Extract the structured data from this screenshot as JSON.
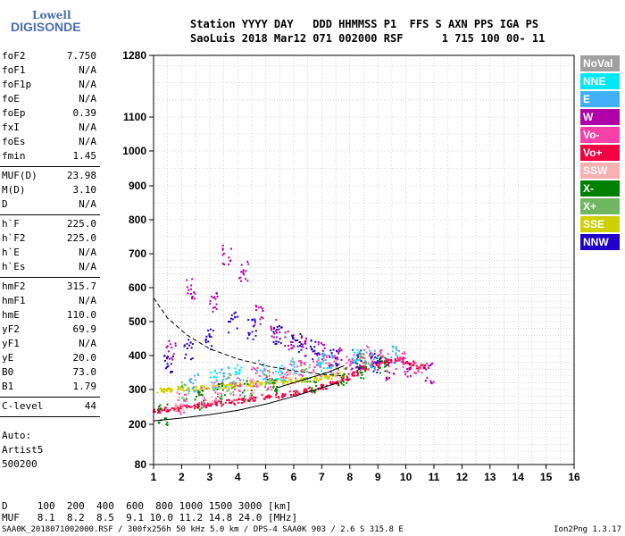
{
  "logo": {
    "brand": "Lowell",
    "name": "DIGISONDE"
  },
  "header": {
    "line1": "Station YYYY DAY   DDD HHMMSS P1  FFS S AXN PPS IGA PS",
    "line2": "SaoLuis 2018 Mar12 071 002000 RSF      1 715 100 00- 11"
  },
  "params": {
    "group1": [
      {
        "label": "foF2",
        "value": "7.750"
      },
      {
        "label": "foF1",
        "value": "N/A"
      },
      {
        "label": "foF1p",
        "value": "N/A"
      },
      {
        "label": "foE",
        "value": "N/A"
      },
      {
        "label": "foEp",
        "value": "0.39"
      },
      {
        "label": "fxI",
        "value": "N/A"
      },
      {
        "label": "foEs",
        "value": "N/A"
      },
      {
        "label": "fmin",
        "value": "1.45"
      }
    ],
    "group2": [
      {
        "label": "MUF(D)",
        "value": "23.98"
      },
      {
        "label": "M(D)",
        "value": "3.10"
      },
      {
        "label": "D",
        "value": "N/A"
      }
    ],
    "group3": [
      {
        "label": "h`F",
        "value": "225.0"
      },
      {
        "label": "h`F2",
        "value": "225.0"
      },
      {
        "label": "h`E",
        "value": "N/A"
      },
      {
        "label": "h`Es",
        "value": "N/A"
      }
    ],
    "group4": [
      {
        "label": "hmF2",
        "value": "315.7"
      },
      {
        "label": "hmF1",
        "value": "N/A"
      },
      {
        "label": "hmE",
        "value": "110.0"
      },
      {
        "label": "yF2",
        "value": "69.9"
      },
      {
        "label": "yF1",
        "value": "N/A"
      },
      {
        "label": "yE",
        "value": "20.0"
      },
      {
        "label": "B0",
        "value": "73.0"
      },
      {
        "label": "B1",
        "value": "1.79"
      }
    ],
    "group5": [
      {
        "label": "C-level",
        "value": "44"
      }
    ]
  },
  "auto": [
    "Auto:",
    "Artist5",
    "500200"
  ],
  "legend": [
    {
      "label": "NoVal",
      "color": "#a0a0a0"
    },
    {
      "label": "NNE",
      "color": "#00e8f8"
    },
    {
      "label": "E",
      "color": "#40b0f8"
    },
    {
      "label": "W",
      "color": "#b000a8"
    },
    {
      "label": "Vo-",
      "color": "#f840a8"
    },
    {
      "label": "Vo+",
      "color": "#f00040"
    },
    {
      "label": "SSW",
      "color": "#f8b0b0"
    },
    {
      "label": "X-",
      "color": "#008000"
    },
    {
      "label": "X+",
      "color": "#70b860"
    },
    {
      "label": "SSE",
      "color": "#d0d000"
    },
    {
      "label": "NNW",
      "color": "#2000c8"
    }
  ],
  "footer": {
    "d_line": "D     100  200  400  600  800 1000 1500 3000 [km]",
    "muf_line": "MUF   8.1  8.2  8.5  9.1 10.0 11.2 14.8 24.0 [MHz]",
    "file_info": "SAA0K_2018071002000.RSF / 300fx256h 50 kHz 5.0 km / DPS-4 SAA0K 903 / 2.6 S 315.8 E",
    "version": "Ion2Png 1.3.17"
  },
  "chart_data": {
    "type": "scatter",
    "title": "",
    "xlabel": "",
    "ylabel": "",
    "xlim": [
      1,
      16
    ],
    "ylim": [
      80,
      1280
    ],
    "y_scale": "log-like (virtual height)",
    "x_ticks": [
      1,
      2,
      3,
      4,
      5,
      6,
      7,
      8,
      9,
      10,
      11,
      12,
      13,
      14,
      15,
      16
    ],
    "y_ticks": [
      80,
      200,
      300,
      400,
      500,
      600,
      700,
      800,
      900,
      1000,
      1100,
      1280
    ],
    "grid": true,
    "series": [
      {
        "color": "#f00040",
        "x": [
          1.1,
          1.4,
          1.8,
          2.1,
          2.5,
          2.9,
          3.3,
          3.7,
          4.1,
          4.5,
          5.0,
          5.5,
          6.0,
          6.5,
          7.0,
          7.4,
          7.8,
          8.1,
          8.5,
          8.9,
          9.3,
          9.7,
          10.1,
          10.5
        ],
        "y": [
          240,
          245,
          248,
          252,
          255,
          258,
          262,
          266,
          270,
          275,
          280,
          285,
          292,
          300,
          310,
          320,
          335,
          350,
          365,
          375,
          385,
          390,
          380,
          370
        ]
      },
      {
        "color": "#d0d000",
        "x": [
          1.2,
          1.6,
          2.0,
          2.4,
          2.8,
          3.2,
          3.6,
          4.0,
          4.4,
          4.8,
          5.2,
          5.6,
          6.0,
          6.4,
          6.8,
          7.2,
          7.6
        ],
        "y": [
          300,
          302,
          305,
          306,
          308,
          310,
          312,
          315,
          318,
          320,
          322,
          325,
          328,
          330,
          335,
          340,
          345
        ]
      },
      {
        "color": "#b000a8",
        "x": [
          1.6,
          2.3,
          3.1,
          3.6,
          4.2,
          4.7,
          5.3,
          5.8,
          6.3,
          6.9,
          7.5,
          8.3,
          8.8,
          9.4,
          10.0,
          10.8
        ],
        "y": [
          420,
          600,
          560,
          700,
          650,
          520,
          480,
          450,
          430,
          420,
          400,
          380,
          390,
          360,
          370,
          350
        ]
      },
      {
        "color": "#f840a8",
        "x": [
          2.0,
          2.7,
          3.3,
          3.9,
          4.6,
          5.1,
          5.7,
          6.2,
          6.8,
          7.3,
          8.0,
          8.6,
          9.2,
          9.8,
          10.4
        ],
        "y": [
          260,
          280,
          300,
          310,
          340,
          330,
          350,
          360,
          370,
          380,
          390,
          400,
          395,
          385,
          375
        ]
      },
      {
        "color": "#2000c8",
        "x": [
          1.5,
          2.2,
          3.0,
          3.8,
          4.5,
          5.4,
          6.1,
          6.7,
          7.4,
          8.2,
          8.9
        ],
        "y": [
          380,
          420,
          450,
          500,
          480,
          460,
          440,
          420,
          400,
          390,
          380
        ]
      },
      {
        "color": "#008000",
        "x": [
          1.3,
          2.6,
          3.4,
          4.3,
          5.2,
          6.6,
          7.7,
          8.4,
          9.1
        ],
        "y": [
          230,
          270,
          290,
          300,
          310,
          320,
          340,
          360,
          370
        ]
      },
      {
        "color": "#40b0f8",
        "x": [
          2.4,
          3.5,
          4.8,
          6.0,
          7.2,
          8.7,
          9.6
        ],
        "y": [
          320,
          340,
          360,
          370,
          380,
          390,
          400
        ]
      },
      {
        "color": "#00e8f8",
        "x": [
          3.1,
          4.0,
          5.5,
          7.0,
          8.2
        ],
        "y": [
          330,
          350,
          360,
          380,
          390
        ]
      },
      {
        "color": "#70b860",
        "x": [
          2.1,
          3.7,
          5.0,
          6.4,
          8.5
        ],
        "y": [
          300,
          320,
          330,
          350,
          380
        ]
      },
      {
        "color": "#f8b0b0",
        "x": [
          1.9,
          3.2,
          4.4,
          5.9,
          7.6
        ],
        "y": [
          270,
          290,
          310,
          330,
          360
        ]
      }
    ],
    "profile_curves": [
      {
        "style": "solid",
        "x": [
          1.0,
          2.0,
          3.0,
          4.0,
          5.0,
          6.0,
          6.8,
          7.6
        ],
        "y": [
          210,
          218,
          228,
          240,
          258,
          280,
          300,
          320
        ]
      },
      {
        "style": "dashed",
        "x": [
          1.0,
          1.5,
          2.2,
          3.0,
          4.0,
          5.0,
          6.0,
          7.0,
          7.8
        ],
        "y": [
          570,
          510,
          460,
          420,
          390,
          370,
          355,
          345,
          340
        ]
      },
      {
        "style": "solid",
        "x": [
          5.4,
          6.0,
          6.6,
          7.2,
          7.8
        ],
        "y": [
          305,
          320,
          335,
          350,
          370
        ]
      }
    ]
  }
}
